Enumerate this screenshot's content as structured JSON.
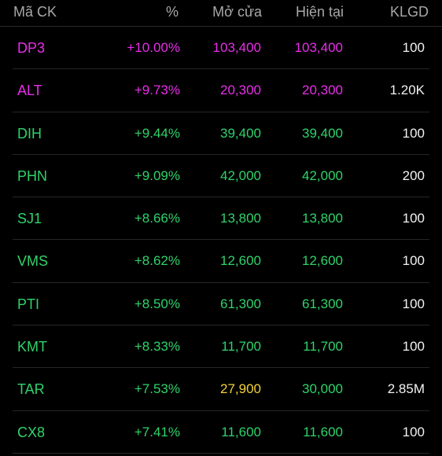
{
  "colors": {
    "ceiling": "#e82ee8",
    "up": "#2fd36a",
    "reference": "#f2d23a",
    "volume": "#f2f2f2"
  },
  "header": {
    "code": "Mã CK",
    "percent": "%",
    "open": "Mở cửa",
    "current": "Hiện tại",
    "volume": "KLGD"
  },
  "rows": [
    {
      "code": "DP3",
      "percent": "+10.00%",
      "open": "103,400",
      "current": "103,400",
      "volume": "100",
      "code_color": "#e82ee8",
      "percent_color": "#e82ee8",
      "open_color": "#e82ee8",
      "current_color": "#e82ee8"
    },
    {
      "code": "ALT",
      "percent": "+9.73%",
      "open": "20,300",
      "current": "20,300",
      "volume": "1.20K",
      "code_color": "#e82ee8",
      "percent_color": "#e82ee8",
      "open_color": "#e82ee8",
      "current_color": "#e82ee8"
    },
    {
      "code": "DIH",
      "percent": "+9.44%",
      "open": "39,400",
      "current": "39,400",
      "volume": "100",
      "code_color": "#2fd36a",
      "percent_color": "#2fd36a",
      "open_color": "#2fd36a",
      "current_color": "#2fd36a"
    },
    {
      "code": "PHN",
      "percent": "+9.09%",
      "open": "42,000",
      "current": "42,000",
      "volume": "200",
      "code_color": "#2fd36a",
      "percent_color": "#2fd36a",
      "open_color": "#2fd36a",
      "current_color": "#2fd36a"
    },
    {
      "code": "SJ1",
      "percent": "+8.66%",
      "open": "13,800",
      "current": "13,800",
      "volume": "100",
      "code_color": "#2fd36a",
      "percent_color": "#2fd36a",
      "open_color": "#2fd36a",
      "current_color": "#2fd36a"
    },
    {
      "code": "VMS",
      "percent": "+8.62%",
      "open": "12,600",
      "current": "12,600",
      "volume": "100",
      "code_color": "#2fd36a",
      "percent_color": "#2fd36a",
      "open_color": "#2fd36a",
      "current_color": "#2fd36a"
    },
    {
      "code": "PTI",
      "percent": "+8.50%",
      "open": "61,300",
      "current": "61,300",
      "volume": "100",
      "code_color": "#2fd36a",
      "percent_color": "#2fd36a",
      "open_color": "#2fd36a",
      "current_color": "#2fd36a"
    },
    {
      "code": "KMT",
      "percent": "+8.33%",
      "open": "11,700",
      "current": "11,700",
      "volume": "100",
      "code_color": "#2fd36a",
      "percent_color": "#2fd36a",
      "open_color": "#2fd36a",
      "current_color": "#2fd36a"
    },
    {
      "code": "TAR",
      "percent": "+7.53%",
      "open": "27,900",
      "current": "30,000",
      "volume": "2.85M",
      "code_color": "#2fd36a",
      "percent_color": "#2fd36a",
      "open_color": "#f2d23a",
      "current_color": "#2fd36a"
    },
    {
      "code": "CX8",
      "percent": "+7.41%",
      "open": "11,600",
      "current": "11,600",
      "volume": "100",
      "code_color": "#2fd36a",
      "percent_color": "#2fd36a",
      "open_color": "#2fd36a",
      "current_color": "#2fd36a"
    }
  ]
}
